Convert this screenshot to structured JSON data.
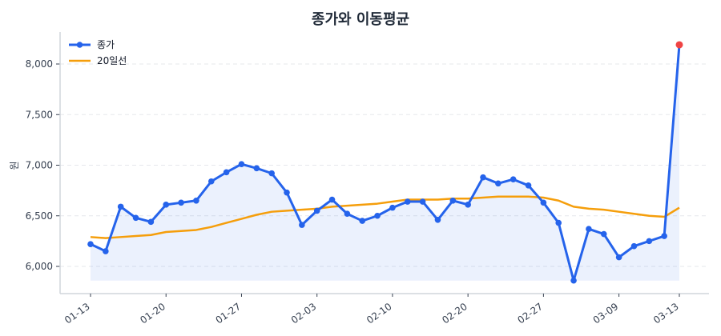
{
  "chart_data": {
    "type": "line",
    "title": "종가와 이동평균",
    "xlabel": "",
    "ylabel": "원",
    "ylim": [
      5780,
      8300
    ],
    "grid": {
      "y": true,
      "x": false,
      "style": "dashed"
    },
    "legend_position": "upper left",
    "x_tick_labels": [
      "01-13",
      "01-20",
      "01-27",
      "02-03",
      "02-10",
      "02-20",
      "02-27",
      "03-09",
      "03-13"
    ],
    "x_tick_indices": [
      0,
      5,
      10,
      15,
      20,
      25,
      30,
      35,
      39
    ],
    "y_ticks": [
      6000,
      6500,
      7000,
      7500,
      8000
    ],
    "y_tick_labels": [
      "6,000",
      "6,500",
      "7,000",
      "7,500",
      "8,000"
    ],
    "series": [
      {
        "name": "종가",
        "color": "#2563eb",
        "marker": "circle",
        "fill": true,
        "last_point_color": "#ef4444",
        "values": [
          6220,
          6150,
          6590,
          6480,
          6440,
          6610,
          6630,
          6650,
          6840,
          6930,
          7010,
          6970,
          6920,
          6730,
          6410,
          6550,
          6660,
          6520,
          6450,
          6500,
          6580,
          6640,
          6640,
          6460,
          6650,
          6610,
          6880,
          6820,
          6860,
          6800,
          6630,
          6430,
          5860,
          6370,
          6320,
          6090,
          6200,
          6250,
          6300,
          8190
        ]
      },
      {
        "name": "20일선",
        "color": "#f59e0b",
        "marker": "none",
        "values": [
          6290,
          6280,
          6290,
          6300,
          6310,
          6340,
          6350,
          6360,
          6390,
          6430,
          6470,
          6510,
          6540,
          6550,
          6560,
          6570,
          6590,
          6600,
          6610,
          6620,
          6640,
          6660,
          6660,
          6660,
          6670,
          6670,
          6680,
          6690,
          6690,
          6690,
          6680,
          6650,
          6590,
          6570,
          6560,
          6540,
          6520,
          6500,
          6490,
          6580
        ]
      }
    ]
  },
  "legend": {
    "items": [
      {
        "label": "종가",
        "color": "#2563eb"
      },
      {
        "label": "20일선",
        "color": "#f59e0b"
      }
    ]
  }
}
